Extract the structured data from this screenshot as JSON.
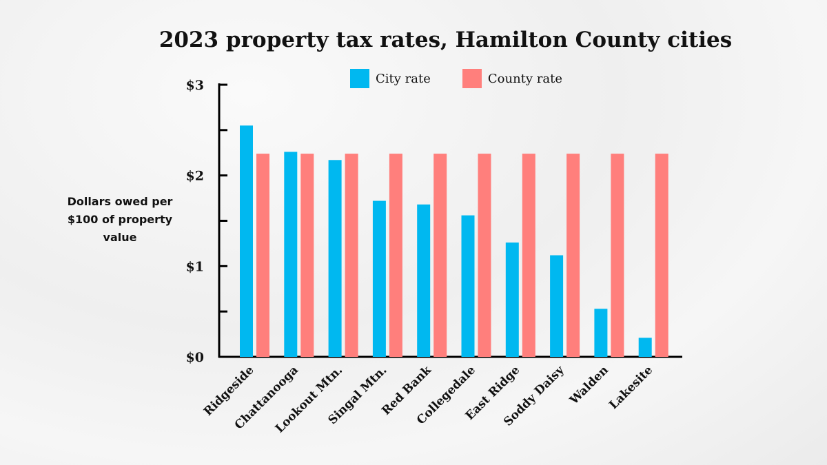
{
  "chart_data": {
    "type": "bar",
    "title": "2023 property tax rates, Hamilton County cities",
    "xlabel": "",
    "ylabel": "Dollars owed per $100 of property value",
    "ylim": [
      0,
      3
    ],
    "yticks": [
      {
        "value": 0,
        "label": "$0"
      },
      {
        "value": 0.5,
        "label": ""
      },
      {
        "value": 1,
        "label": "$1"
      },
      {
        "value": 1.5,
        "label": ""
      },
      {
        "value": 2,
        "label": "$2"
      },
      {
        "value": 2.5,
        "label": ""
      },
      {
        "value": 3,
        "label": "$3"
      }
    ],
    "grid": false,
    "legend": "top",
    "categories": [
      "Ridgeside",
      "Chattanooga",
      "Lookout Mtn.",
      "Singal Mtn.",
      "Red Bank",
      "Collegedale",
      "East Ridge",
      "Soddy Daisy",
      "Walden",
      "Lakesite"
    ],
    "series": [
      {
        "name": "City rate",
        "color": "#00b8f0",
        "values": [
          2.55,
          2.26,
          2.17,
          1.72,
          1.68,
          1.56,
          1.26,
          1.12,
          0.53,
          0.21
        ]
      },
      {
        "name": "County rate",
        "color": "#ff7f7c",
        "values": [
          2.24,
          2.24,
          2.24,
          2.24,
          2.24,
          2.24,
          2.24,
          2.24,
          2.24,
          2.24
        ]
      }
    ]
  }
}
